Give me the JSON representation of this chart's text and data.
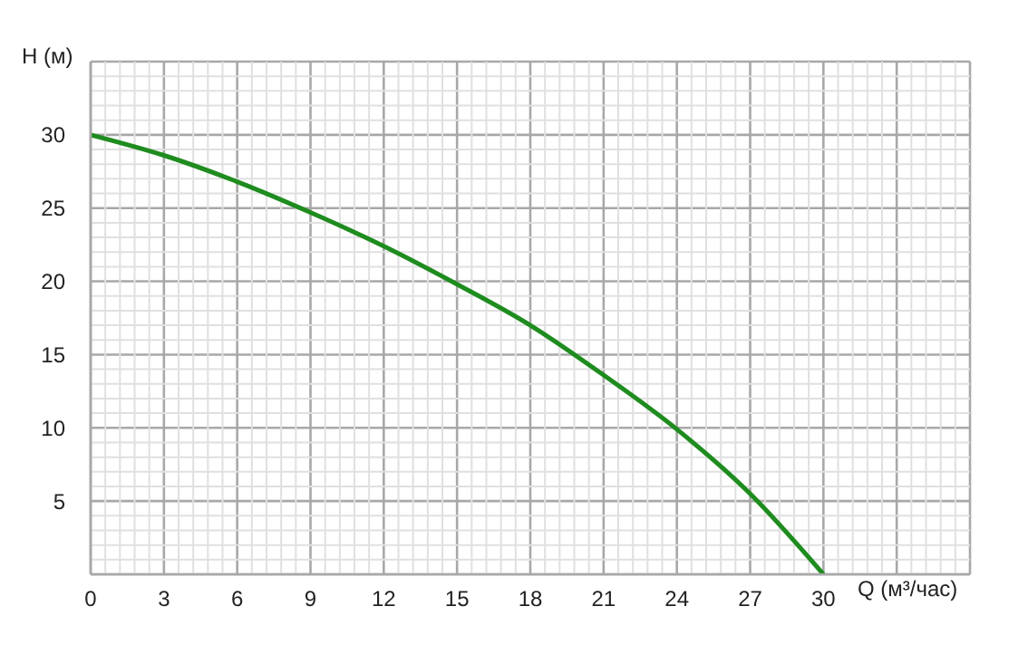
{
  "chart_data": {
    "type": "line",
    "xlabel": "Q (м³/час)",
    "ylabel": "H (м)",
    "x": [
      0,
      3,
      6,
      9,
      12,
      15,
      18,
      21,
      24,
      27,
      30
    ],
    "series": [
      {
        "color": "#1e8c1e",
        "values": [
          30,
          28.6,
          26.8,
          24.7,
          22.4,
          19.8,
          17,
          13.6,
          9.9,
          5.5,
          0
        ]
      }
    ],
    "xlim": [
      0,
      36
    ],
    "xticks": [
      0,
      3,
      6,
      9,
      12,
      15,
      18,
      21,
      24,
      27,
      30,
      {
        "value": 33,
        "label": null
      },
      {
        "value": 36,
        "label": null
      }
    ],
    "ylim": [
      0,
      35
    ],
    "yticks": [
      {
        "value": 0,
        "label": null
      },
      5,
      10,
      15,
      20,
      25,
      30,
      {
        "value": 35,
        "label": null
      }
    ],
    "grid": true,
    "marker": "none",
    "line_style": "solid"
  }
}
